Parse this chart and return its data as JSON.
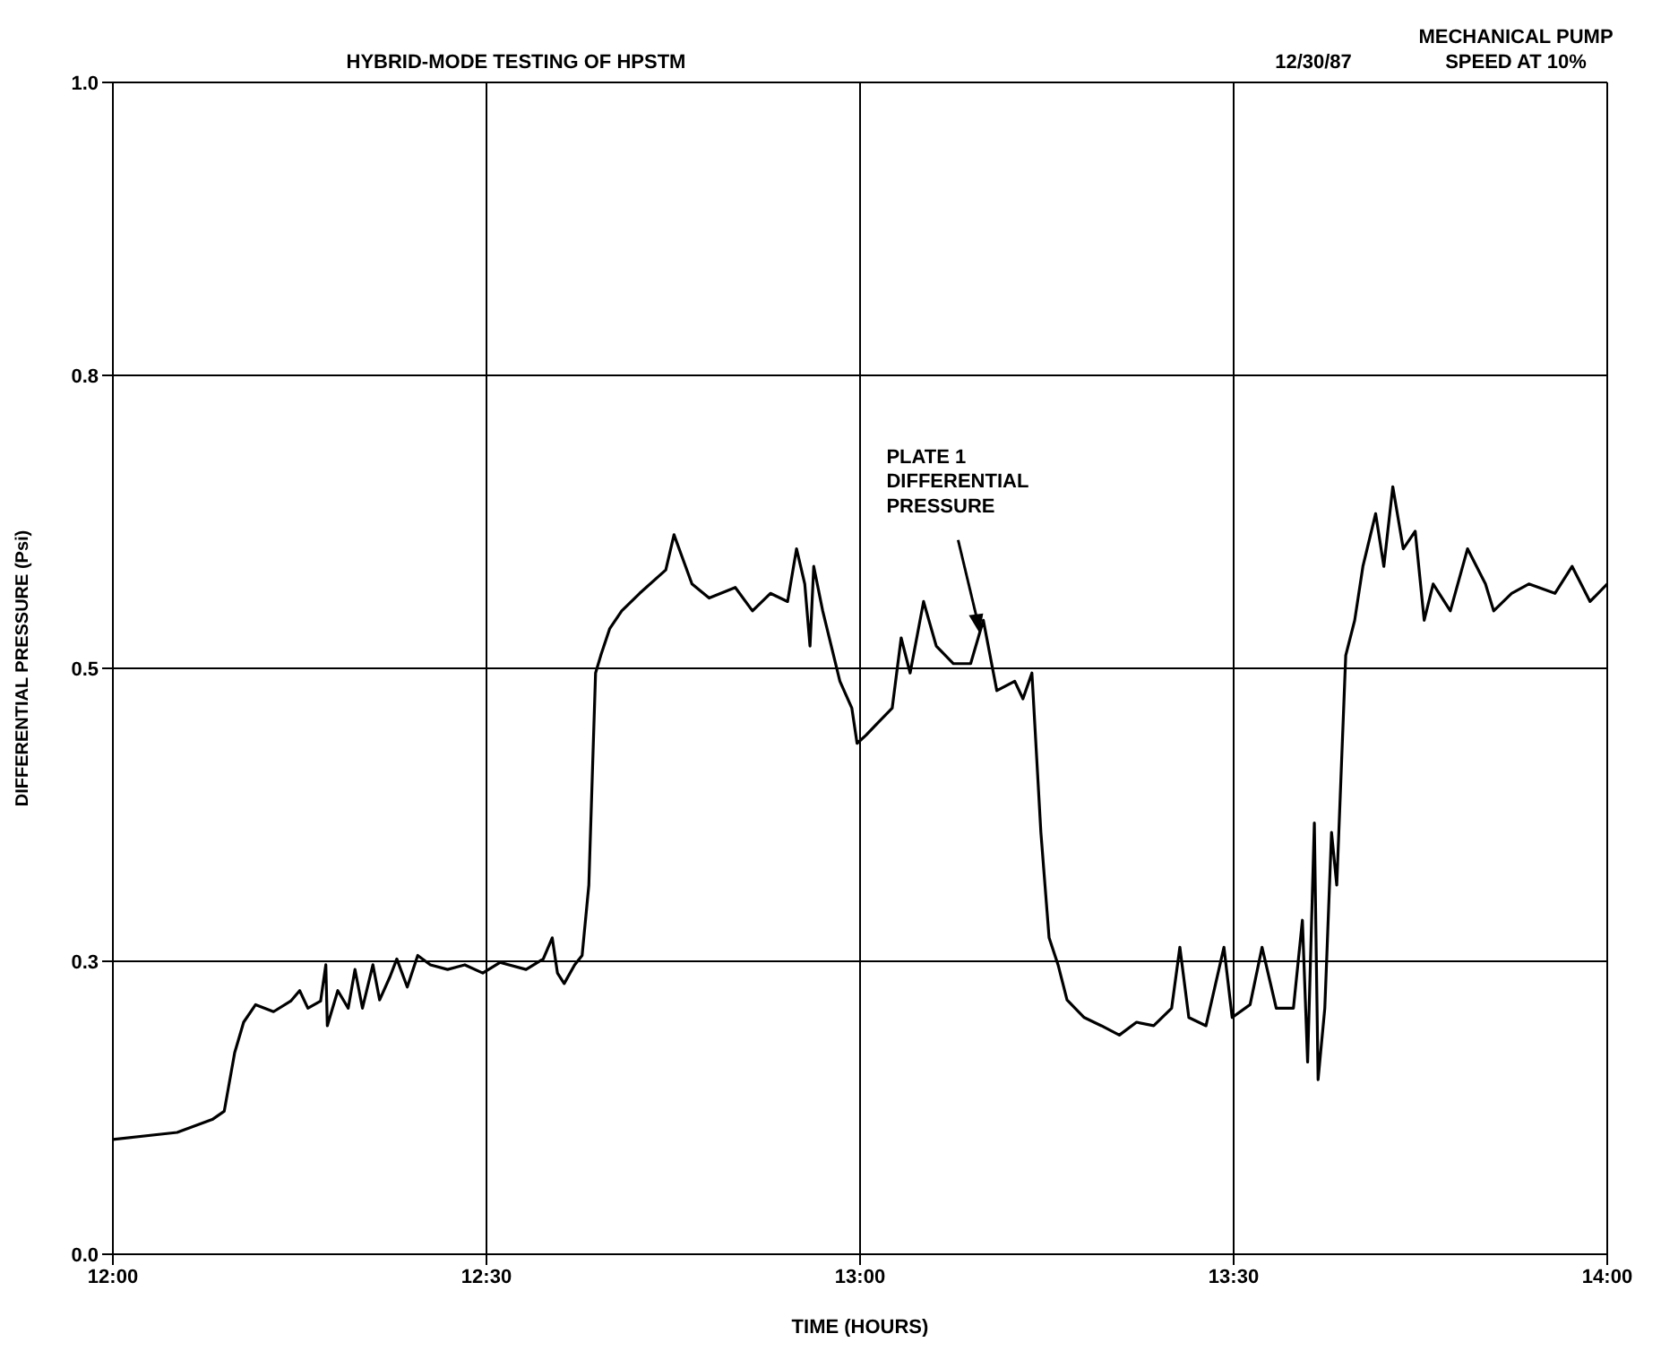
{
  "chart_data": {
    "type": "line",
    "title": "HYBRID-MODE TESTING OF HPSTM",
    "xlabel": "TIME (HOURS)",
    "ylabel": "DIFFERENTIAL PRESSURE (Psi)",
    "annotations": [
      "12/30/87",
      "MECHANICAL PUMP\nSPEED AT 10%",
      {
        "text": "PLATE 1\nDIFFERENTIAL\nPRESSURE",
        "x": 13.16,
        "y": 0.53
      }
    ],
    "x": [
      12,
      12.086,
      12.133,
      12.149,
      12.163,
      12.175,
      12.191,
      12.215,
      12.238,
      12.25,
      12.261,
      12.278,
      12.285,
      12.287,
      12.301,
      12.315,
      12.324,
      12.334,
      12.348,
      12.357,
      12.371,
      12.38,
      12.394,
      12.408,
      12.425,
      12.448,
      12.471,
      12.495,
      12.518,
      12.553,
      12.576,
      12.588,
      12.595,
      12.604,
      12.618,
      12.628,
      12.637,
      12.646,
      12.653,
      12.665,
      12.681,
      12.705,
      12.74,
      12.751,
      12.775,
      12.798,
      12.833,
      12.856,
      12.88,
      12.903,
      12.915,
      12.926,
      12.933,
      12.938,
      12.95,
      12.973,
      12.989,
      12.996,
      13.008,
      13.02,
      13.043,
      13.055,
      13.067,
      13.085,
      13.102,
      13.125,
      13.148,
      13.165,
      13.183,
      13.207,
      13.218,
      13.23,
      13.242,
      13.253,
      13.265,
      13.277,
      13.3,
      13.323,
      13.347,
      13.37,
      13.393,
      13.417,
      13.428,
      13.44,
      13.463,
      13.487,
      13.498,
      13.522,
      13.538,
      13.557,
      13.58,
      13.592,
      13.599,
      13.608,
      13.613,
      13.622,
      13.631,
      13.638,
      13.65,
      13.662,
      13.673,
      13.69,
      13.701,
      13.713,
      13.727,
      13.743,
      13.755,
      13.767,
      13.79,
      13.813,
      13.837,
      13.848,
      13.872,
      13.895,
      13.93,
      13.953,
      13.977,
      14
    ],
    "series": [
      {
        "color": "#000000",
        "values": [
          0.098,
          0.104,
          0.115,
          0.122,
          0.172,
          0.198,
          0.213,
          0.207,
          0.216,
          0.225,
          0.21,
          0.216,
          0.247,
          0.195,
          0.225,
          0.21,
          0.243,
          0.21,
          0.247,
          0.217,
          0.237,
          0.252,
          0.228,
          0.255,
          0.247,
          0.243,
          0.247,
          0.24,
          0.249,
          0.243,
          0.252,
          0.27,
          0.24,
          0.231,
          0.247,
          0.255,
          0.315,
          0.496,
          0.511,
          0.534,
          0.549,
          0.564,
          0.584,
          0.614,
          0.572,
          0.56,
          0.569,
          0.549,
          0.564,
          0.557,
          0.602,
          0.572,
          0.519,
          0.587,
          0.549,
          0.489,
          0.466,
          0.436,
          0.443,
          0.451,
          0.466,
          0.526,
          0.496,
          0.557,
          0.519,
          0.504,
          0.504,
          0.541,
          0.481,
          0.489,
          0.474,
          0.496,
          0.36,
          0.27,
          0.247,
          0.217,
          0.202,
          0.195,
          0.187,
          0.198,
          0.195,
          0.21,
          0.262,
          0.202,
          0.195,
          0.262,
          0.202,
          0.213,
          0.262,
          0.21,
          0.21,
          0.285,
          0.164,
          0.368,
          0.149,
          0.21,
          0.36,
          0.315,
          0.511,
          0.541,
          0.587,
          0.632,
          0.587,
          0.655,
          0.602,
          0.617,
          0.541,
          0.572,
          0.549,
          0.602,
          0.572,
          0.549,
          0.564,
          0.572,
          0.564,
          0.587,
          0.557,
          0.572
        ]
      }
    ],
    "xlim": [
      12,
      14
    ],
    "xticks": [
      {
        "value": 12,
        "label": "12:00"
      },
      {
        "value": 12.5,
        "label": "12:30"
      },
      {
        "value": 13,
        "label": "13:00"
      },
      {
        "value": 13.5,
        "label": "13:30"
      },
      {
        "value": 14,
        "label": "14:00"
      }
    ],
    "ylim": [
      0,
      1
    ],
    "yticks": [
      {
        "value": 0,
        "label": "0.0"
      },
      {
        "value": 0.25,
        "label": "0.3"
      },
      {
        "value": 0.5,
        "label": "0.5"
      },
      {
        "value": 0.75,
        "label": "0.8"
      },
      {
        "value": 1,
        "label": "1.0"
      }
    ],
    "grid": true,
    "legend": false,
    "marker": "none",
    "line_style": "solid"
  }
}
